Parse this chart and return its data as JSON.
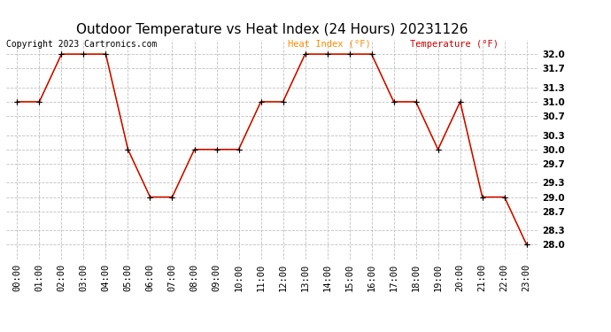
{
  "title": "Outdoor Temperature vs Heat Index (24 Hours) 20231126",
  "copyright": "Copyright 2023 Cartronics.com",
  "legend_heat": "Heat Index (°F)",
  "legend_temp": "Temperature (°F)",
  "x_labels": [
    "00:00",
    "01:00",
    "02:00",
    "03:00",
    "04:00",
    "05:00",
    "06:00",
    "07:00",
    "08:00",
    "09:00",
    "10:00",
    "11:00",
    "12:00",
    "13:00",
    "14:00",
    "15:00",
    "16:00",
    "17:00",
    "18:00",
    "19:00",
    "20:00",
    "21:00",
    "22:00",
    "23:00"
  ],
  "temperature": [
    31.0,
    31.0,
    32.0,
    32.0,
    32.0,
    30.0,
    29.0,
    29.0,
    30.0,
    30.0,
    30.0,
    31.0,
    31.0,
    32.0,
    32.0,
    32.0,
    32.0,
    31.0,
    31.0,
    30.0,
    31.0,
    29.0,
    29.0,
    28.0
  ],
  "heat_index": [
    31.0,
    31.0,
    32.0,
    32.0,
    32.0,
    30.0,
    29.0,
    29.0,
    30.0,
    30.0,
    30.0,
    31.0,
    31.0,
    32.0,
    32.0,
    32.0,
    32.0,
    31.0,
    31.0,
    30.0,
    31.0,
    29.0,
    29.0,
    28.0
  ],
  "y_ticks": [
    28.0,
    28.3,
    28.7,
    29.0,
    29.3,
    29.7,
    30.0,
    30.3,
    30.7,
    31.0,
    31.3,
    31.7,
    32.0
  ],
  "ylim": [
    27.7,
    32.3
  ],
  "xlim": [
    -0.5,
    23.5
  ],
  "line_color": "#cc0000",
  "marker_color": "#000000",
  "bg_color": "#ffffff",
  "grid_color": "#b0b0b0",
  "title_color": "#000000",
  "copyright_color": "#000000",
  "heat_index_legend_color": "#ff8c00",
  "temp_legend_color": "#cc0000",
  "title_fontsize": 11,
  "tick_fontsize": 7.5,
  "copyright_fontsize": 7,
  "legend_fontsize": 7.5
}
